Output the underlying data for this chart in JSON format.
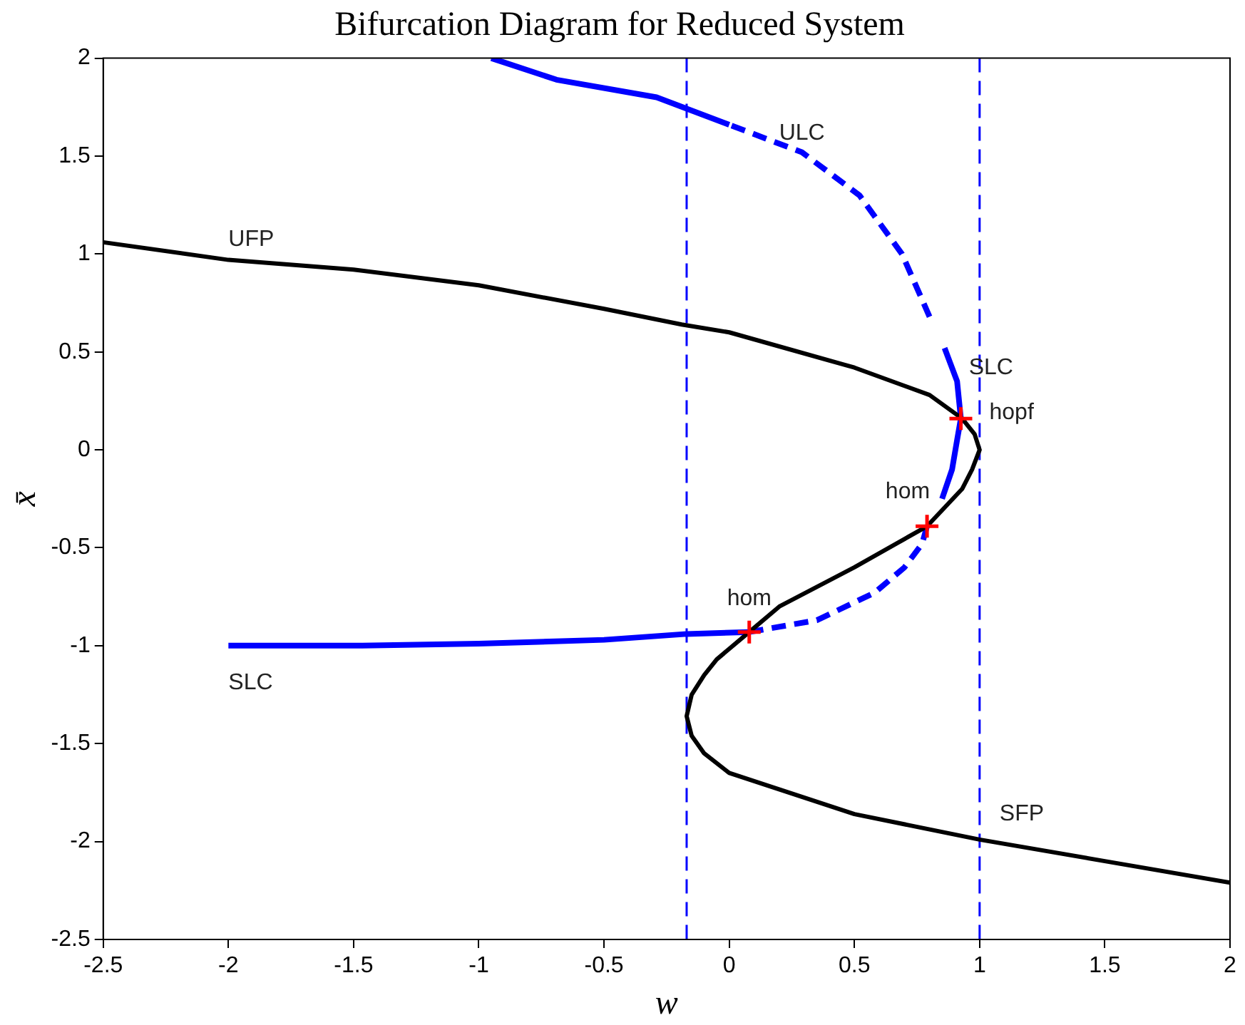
{
  "chart_data": {
    "type": "line",
    "title": "Bifurcation Diagram for Reduced System",
    "xlabel": "w",
    "ylabel": "x̄",
    "xlim": [
      -2.5,
      2
    ],
    "xticks": [
      -2.5,
      -2,
      -1.5,
      -1,
      -0.5,
      0,
      0.5,
      1,
      1.5,
      2
    ],
    "ylim": [
      -2.5,
      2
    ],
    "yticks": [
      -2.5,
      -2,
      -1.5,
      -1,
      -0.5,
      0,
      0.5,
      1,
      1.5,
      2
    ],
    "grid": false,
    "legend": false,
    "series": [
      {
        "type": "line",
        "color": "#000000",
        "line_style": "solid",
        "x": [
          -2.5,
          -2,
          -1.5,
          -1,
          -0.5,
          -0.19,
          0,
          0.5,
          0.8,
          0.93,
          0.98,
          1,
          0.97,
          0.93,
          0.79,
          0.5,
          0.2,
          0.08,
          -0.05,
          -0.1,
          -0.15,
          -0.17,
          -0.15,
          -0.1,
          0,
          0.5,
          1,
          1.5,
          2
        ],
        "values": [
          1.06,
          0.97,
          0.92,
          0.84,
          0.72,
          0.64,
          0.6,
          0.42,
          0.28,
          0.16,
          0.08,
          0,
          -0.1,
          -0.2,
          -0.39,
          -0.6,
          -0.8,
          -0.93,
          -1.07,
          -1.15,
          -1.25,
          -1.36,
          -1.46,
          -1.55,
          -1.65,
          -1.86,
          -1.99,
          -2.1,
          -2.21
        ]
      },
      {
        "type": "line",
        "color": "#0000ff",
        "line_style": "solid",
        "x": [
          -2,
          -1.5,
          -1,
          -0.5,
          -0.17,
          0.08
        ],
        "values": [
          -1,
          -1,
          -0.99,
          -0.97,
          -0.94,
          -0.93
        ]
      },
      {
        "type": "line",
        "color": "#0000ff",
        "line_style": "dashed",
        "x": [
          0.08,
          0.35,
          0.58,
          0.7,
          0.77,
          0.79
        ],
        "values": [
          -0.93,
          -0.87,
          -0.73,
          -0.6,
          -0.48,
          -0.39
        ]
      },
      {
        "type": "line",
        "color": "#0000ff",
        "line_style": "solid",
        "x": [
          0.85,
          0.89,
          0.91,
          0.925,
          0.91,
          0.86
        ],
        "values": [
          -0.25,
          -0.1,
          0.05,
          0.16,
          0.35,
          0.52
        ]
      },
      {
        "type": "line",
        "color": "#0000ff",
        "line_style": "dashed",
        "x": [
          0.8,
          0.69,
          0.52,
          0.29,
          0
        ],
        "values": [
          0.68,
          1,
          1.3,
          1.52,
          1.66
        ]
      },
      {
        "type": "line",
        "color": "#0000ff",
        "line_style": "solid",
        "x": [
          0,
          -0.29,
          -0.69,
          -0.95
        ],
        "values": [
          1.66,
          1.8,
          1.89,
          2
        ]
      },
      {
        "type": "scatter",
        "color": "#ff0000",
        "marker": "cross",
        "x": [
          0.925,
          0.79,
          0.08
        ],
        "values": [
          0.16,
          -0.39,
          -0.93
        ]
      }
    ],
    "ref_lines": [
      {
        "axis": "x",
        "value": -0.17,
        "color": "#0000ff",
        "line_style": "dashed"
      },
      {
        "axis": "x",
        "value": 1,
        "color": "#0000ff",
        "line_style": "dashed"
      }
    ],
    "annotations": [
      {
        "text": "UFP",
        "x": -2,
        "y": 0.97
      },
      {
        "text": "ULC",
        "x": 0,
        "y": 1.66
      },
      {
        "text": "SLC",
        "x": 0.86,
        "y": 0.52
      },
      {
        "text": "hopf",
        "x": 0.925,
        "y": 0.16
      },
      {
        "text": "hom",
        "x": 0.79,
        "y": -0.39
      },
      {
        "text": "hom",
        "x": 0.08,
        "y": -0.93
      },
      {
        "text": "SLC",
        "x": -2,
        "y": -1
      },
      {
        "text": "SFP",
        "x": 1,
        "y": -1.99
      }
    ]
  }
}
